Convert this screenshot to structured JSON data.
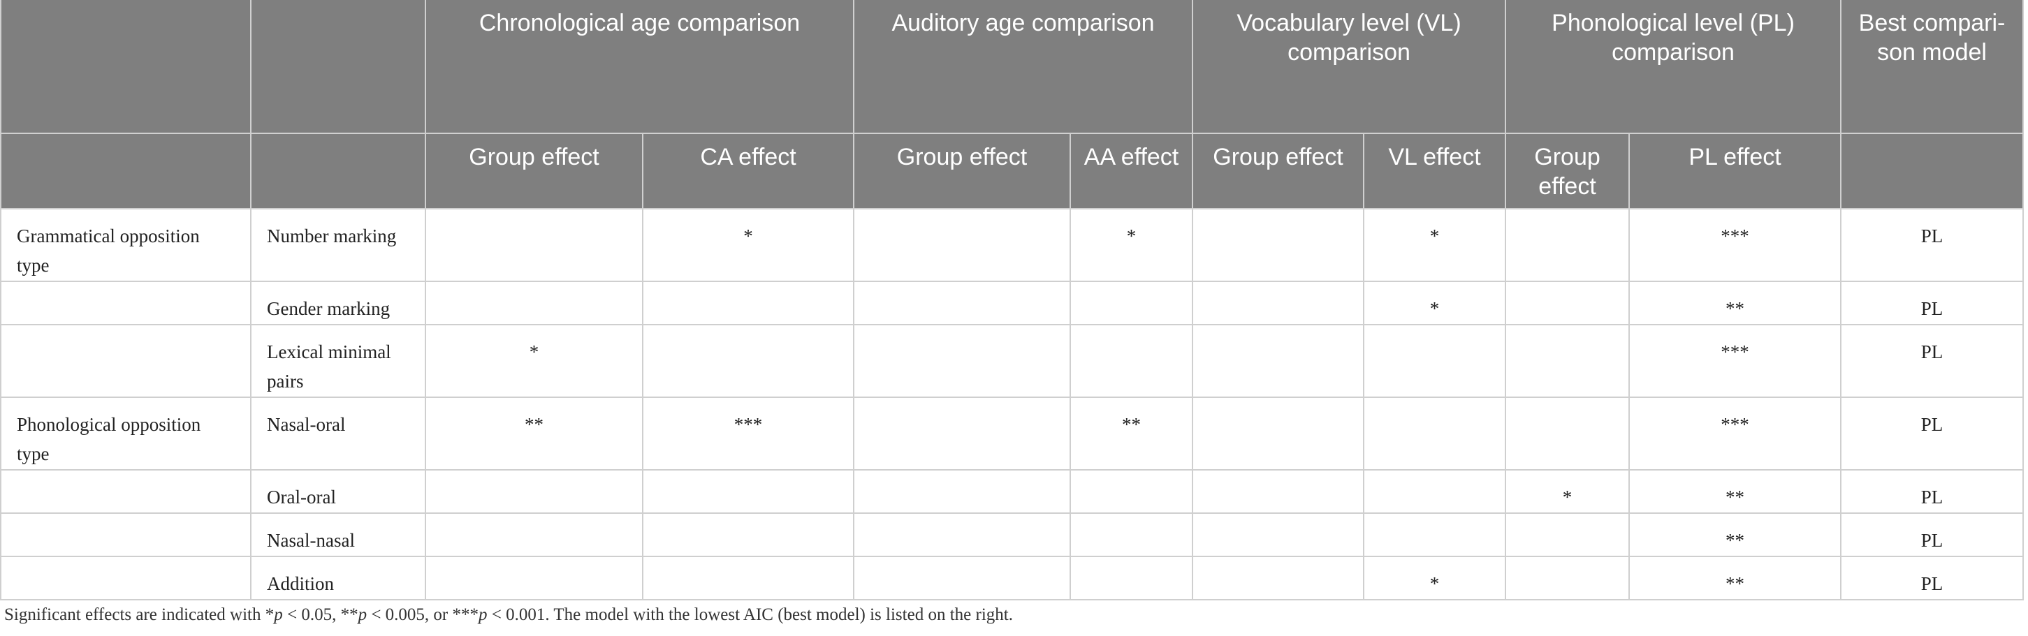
{
  "header": {
    "groups": [
      "Chronological age comparison",
      "Auditory age comparison",
      "Vocabulary level (VL) comparison",
      "Phonological level (PL) comparison",
      "Best compari- son model"
    ],
    "subheaders": [
      "Group effect",
      "CA effect",
      "Group effect",
      "AA effect",
      "Group effect",
      "VL effect",
      "Group effect",
      "PL effect"
    ]
  },
  "rows": [
    {
      "category": "Grammatical opposition type",
      "label": "Number marking",
      "cells": [
        "",
        "*",
        "",
        "*",
        "",
        "*",
        "",
        "***"
      ],
      "best": "PL"
    },
    {
      "category": "",
      "label": "Gender marking",
      "cells": [
        "",
        "",
        "",
        "",
        "",
        "*",
        "",
        "**"
      ],
      "best": "PL"
    },
    {
      "category": "",
      "label": "Lexical minimal pairs",
      "cells": [
        "*",
        "",
        "",
        "",
        "",
        "",
        "",
        "***"
      ],
      "best": "PL"
    },
    {
      "category": "Phonological opposition type",
      "label": "Nasal-oral",
      "cells": [
        "**",
        "***",
        "",
        "**",
        "",
        "",
        "",
        "***"
      ],
      "best": "PL"
    },
    {
      "category": "",
      "label": "Oral-oral",
      "cells": [
        "",
        "",
        "",
        "",
        "",
        "",
        "*",
        "**"
      ],
      "best": "PL"
    },
    {
      "category": "",
      "label": "Nasal-nasal",
      "cells": [
        "",
        "",
        "",
        "",
        "",
        "",
        "",
        "**"
      ],
      "best": "PL"
    },
    {
      "category": "",
      "label": "Addition",
      "cells": [
        "",
        "",
        "",
        "",
        "",
        "*",
        "",
        "**"
      ],
      "best": "PL"
    }
  ],
  "footnote": {
    "pre": "Significant effects are indicated with *",
    "p": "p",
    "a": " < 0.05, **",
    "b": " < 0.005, or ***",
    "c": " < 0.001. The model with the lowest AIC (best model) is listed on the right."
  }
}
